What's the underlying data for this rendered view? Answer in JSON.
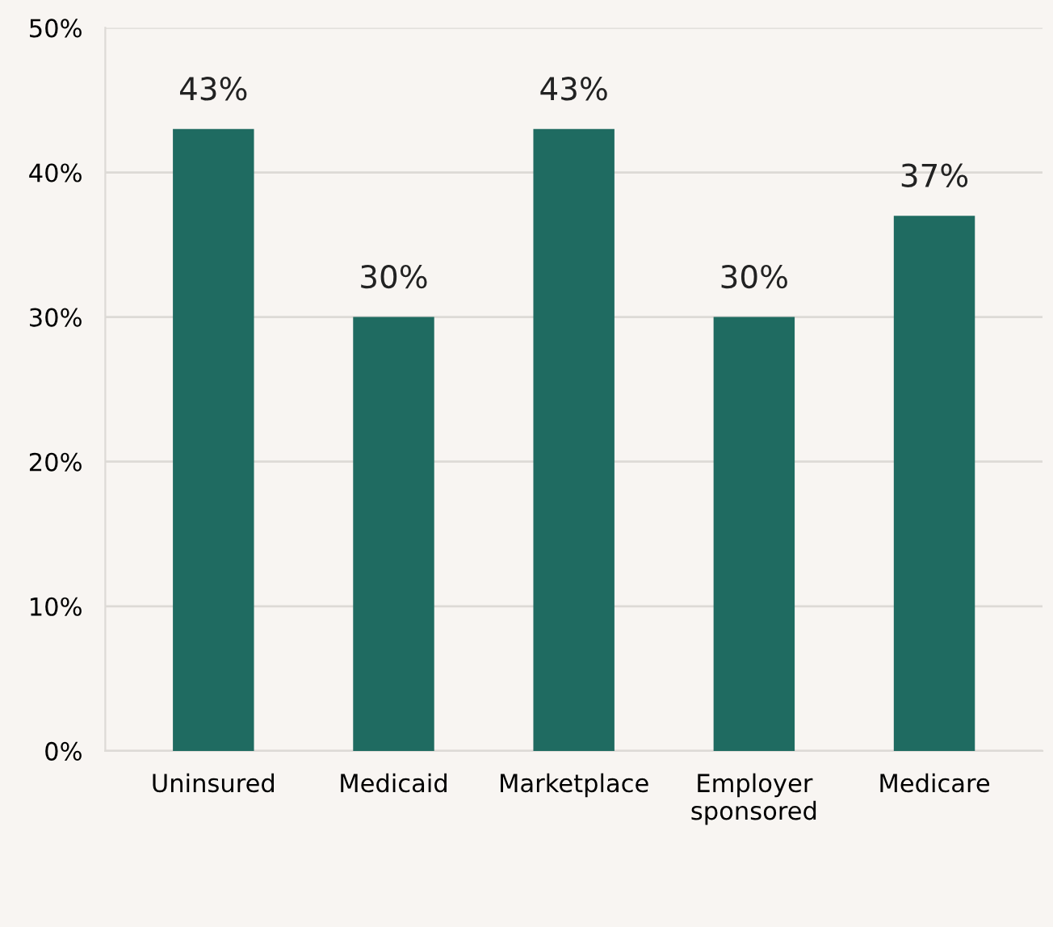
{
  "chart_data": {
    "type": "bar",
    "categories": [
      "Uninsured",
      "Medicaid",
      "Marketplace",
      "Employer\nsponsored",
      "Medicare"
    ],
    "series": [
      {
        "color": "#1f6b61",
        "values": [
          43,
          30,
          43,
          30,
          37
        ]
      }
    ],
    "value_labels": [
      "43%",
      "30%",
      "43%",
      "30%",
      "37%"
    ],
    "ylim": [
      0,
      50
    ],
    "yticks": [
      {
        "value": 0,
        "label": "0%"
      },
      {
        "value": 10,
        "label": "10%"
      },
      {
        "value": 20,
        "label": "20%"
      },
      {
        "value": 30,
        "label": "30%"
      },
      {
        "value": 40,
        "label": "40%"
      },
      {
        "value": 50,
        "label": "50%"
      }
    ],
    "grid": "y",
    "legend": false
  }
}
